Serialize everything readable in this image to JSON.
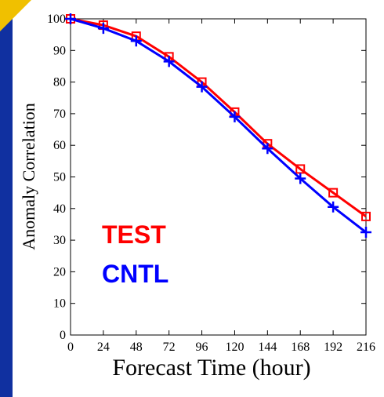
{
  "chart_data": {
    "type": "line",
    "x_label": "Forecast Time (hour)",
    "y_label": "Anomaly Correlation",
    "x": [
      0,
      24,
      48,
      72,
      96,
      120,
      144,
      168,
      192,
      216
    ],
    "series": [
      {
        "name": "TEST",
        "color": "#ff0000",
        "marker": "square",
        "values": [
          100,
          98,
          94.5,
          88,
          80,
          70.5,
          60.5,
          52.5,
          45,
          37.5
        ]
      },
      {
        "name": "CNTL",
        "color": "#0000ff",
        "marker": "plus",
        "values": [
          100,
          97,
          93,
          86.5,
          78.5,
          69,
          59,
          49.5,
          40.5,
          32.5
        ]
      }
    ],
    "xlim": [
      0,
      216
    ],
    "ylim": [
      0,
      100
    ],
    "xticks": [
      0,
      24,
      48,
      72,
      96,
      120,
      144,
      168,
      192,
      216
    ],
    "yticks": [
      0,
      10,
      20,
      30,
      40,
      50,
      60,
      70,
      80,
      90,
      100
    ]
  }
}
